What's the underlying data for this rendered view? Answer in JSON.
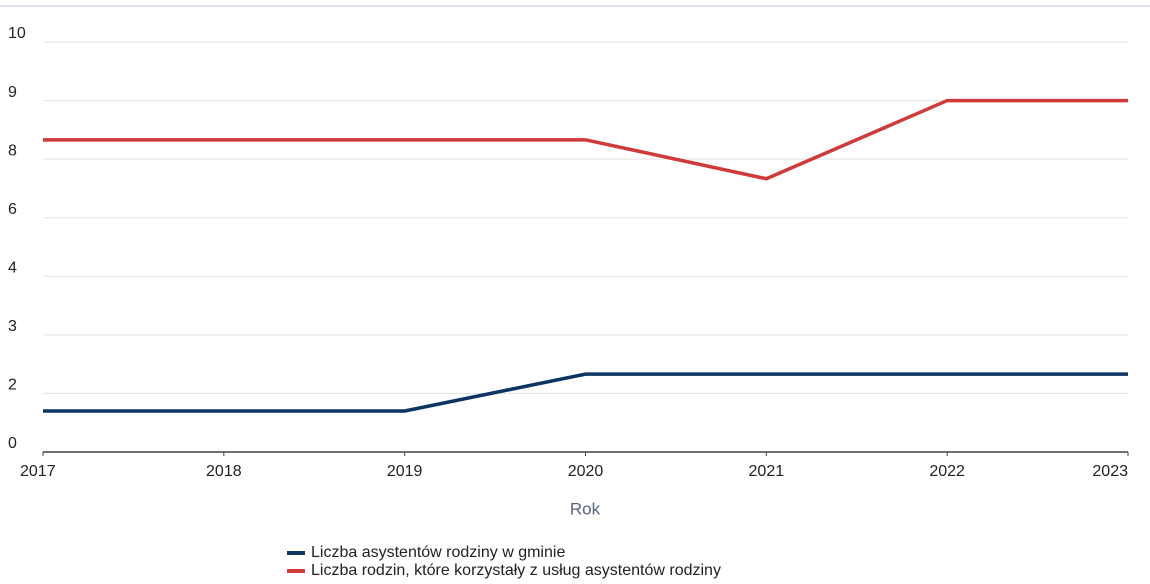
{
  "chart_data": {
    "type": "line",
    "x_label": "Rok",
    "x": [
      2017,
      2018,
      2019,
      2020,
      2021,
      2022,
      2023
    ],
    "xlim": [
      2017,
      2023
    ],
    "xticks": [
      2017,
      2018,
      2019,
      2020,
      2021,
      2022,
      2023
    ],
    "ylim": [
      0,
      10
    ],
    "yticks": [
      0,
      2,
      3,
      4,
      6,
      8,
      9,
      10
    ],
    "grid": true,
    "legend": "bottom",
    "series": [
      {
        "name": "Liczba asystentów rodziny w gminie",
        "color": "#0d3563",
        "values": [
          1.4,
          1.4,
          1.4,
          2.33,
          2.33,
          2.33,
          2.33
        ]
      },
      {
        "name": "Liczba rodzin, które korzystały z usług asystentów rodziny",
        "color": "#d03a3a",
        "values": [
          8.33,
          8.33,
          8.33,
          8.33,
          7.33,
          9,
          9
        ]
      }
    ]
  }
}
